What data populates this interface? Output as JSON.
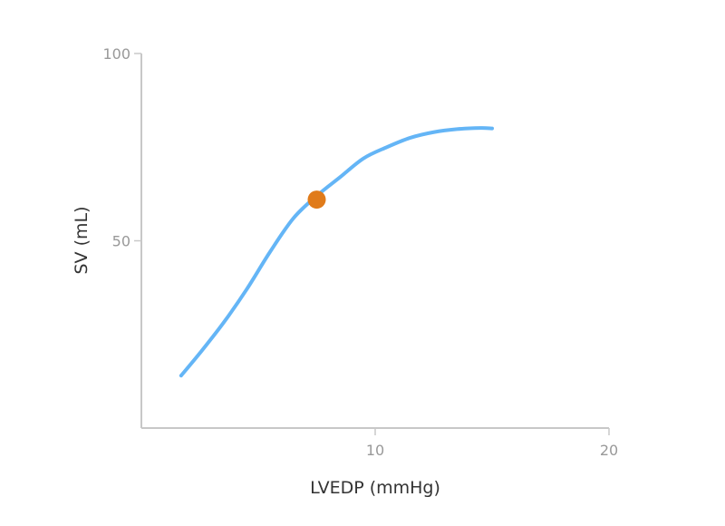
{
  "chart_data": {
    "type": "line",
    "title": "",
    "xlabel": "LVEDP (mmHg)",
    "ylabel": "SV (mL)",
    "xlim": [
      0,
      20
    ],
    "ylim": [
      0,
      100
    ],
    "x_ticks": [
      10,
      20
    ],
    "y_ticks": [
      50,
      100
    ],
    "grid": false,
    "legend": "none",
    "series": [
      {
        "color": "#64b5f6",
        "x": [
          1.7,
          2.5,
          3.5,
          4.5,
          5.5,
          6.5,
          7.5,
          8.5,
          9.5,
          10.5,
          11.5,
          12.5,
          13.5,
          14.5,
          15.0
        ],
        "y": [
          14,
          20,
          28,
          37,
          47,
          56,
          62,
          67,
          72,
          75,
          77.5,
          79,
          79.8,
          80.1,
          80
        ]
      }
    ],
    "highlight_point": {
      "x": 7.5,
      "y": 61,
      "color": "#e07b1a"
    }
  }
}
